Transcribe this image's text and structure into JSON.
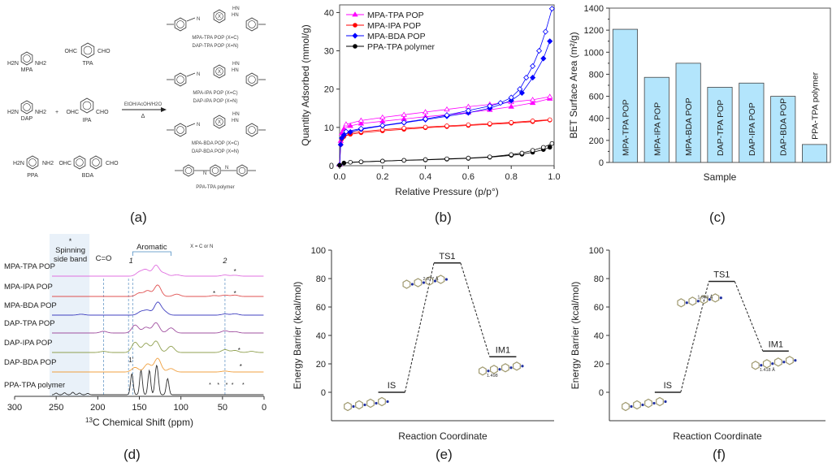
{
  "panels": {
    "a": {
      "label": "(a)"
    },
    "b": {
      "label": "(b)"
    },
    "c": {
      "label": "(c)"
    },
    "d": {
      "label": "(d)"
    },
    "e": {
      "label": "(e)"
    },
    "f": {
      "label": "(f)"
    }
  },
  "scheme": {
    "monomers": [
      {
        "name": "MPA",
        "left": "H2N",
        "right": "NH2"
      },
      {
        "name": "TPA",
        "left": "OHC",
        "right": "CHO"
      },
      {
        "name": "DAP",
        "left": "H2N",
        "right": "NH2"
      },
      {
        "name": "IPA",
        "left": "OHC",
        "right": "CHO"
      },
      {
        "name": "PPA",
        "left": "H2N",
        "right": "NH2"
      },
      {
        "name": "BDA",
        "left": "OHC",
        "right": "CHO"
      }
    ],
    "plus": "+",
    "conditions_top": "EtOH/AcOH/H2O",
    "conditions_bottom": "Δ",
    "products": [
      {
        "line1": "MPA-TPA POP (X=C)",
        "line2": "DAP-TPA POP (X=N)"
      },
      {
        "line1": "MPA-IPA POP (X=C)",
        "line2": "DAP-IPA POP (X=N)"
      },
      {
        "line1": "MPA-BDA POP (X=C)",
        "line2": "DAP-BDA POP (X=N)"
      },
      {
        "line1": "PPA-TPA polymer",
        "line2": ""
      }
    ],
    "atom_labels": {
      "N": "N",
      "X": "X",
      "HN": "HN",
      "H": "H"
    }
  },
  "chart_data": [
    {
      "id": "b",
      "type": "scatter",
      "title": "",
      "xlabel": "Relative Pressure (p/p°)",
      "ylabel": "Quantity Adsorbed (mmol/g)",
      "xlim": [
        0,
        1.0
      ],
      "ylim": [
        0,
        42
      ],
      "xticks": [
        "0.0",
        "0.2",
        "0.4",
        "0.6",
        "0.8",
        "1.0"
      ],
      "yticks": [
        "0",
        "10",
        "20",
        "30",
        "40"
      ],
      "legend_position": "top-left",
      "series": [
        {
          "name": "MPA-TPA POP",
          "color": "#ff00ff",
          "marker": "triangle",
          "adsorption": [
            [
              0.0,
              0.3
            ],
            [
              0.005,
              6.5
            ],
            [
              0.01,
              8.5
            ],
            [
              0.02,
              9.6
            ],
            [
              0.05,
              10.4
            ],
            [
              0.1,
              11.0
            ],
            [
              0.2,
              11.6
            ],
            [
              0.3,
              12.2
            ],
            [
              0.4,
              12.8
            ],
            [
              0.5,
              13.3
            ],
            [
              0.6,
              13.9
            ],
            [
              0.7,
              14.6
            ],
            [
              0.8,
              15.4
            ],
            [
              0.9,
              16.4
            ],
            [
              0.98,
              17.5
            ]
          ],
          "desorption": [
            [
              0.98,
              18.0
            ],
            [
              0.9,
              17.2
            ],
            [
              0.8,
              16.6
            ],
            [
              0.7,
              16.0
            ],
            [
              0.6,
              15.4
            ],
            [
              0.5,
              14.7
            ],
            [
              0.4,
              14.0
            ],
            [
              0.3,
              13.3
            ],
            [
              0.2,
              12.6
            ],
            [
              0.1,
              11.8
            ],
            [
              0.03,
              10.8
            ]
          ]
        },
        {
          "name": "MPA-IPA POP",
          "color": "#ff0000",
          "marker": "circle",
          "adsorption": [
            [
              0.0,
              0.2
            ],
            [
              0.005,
              5.5
            ],
            [
              0.01,
              7.0
            ],
            [
              0.02,
              7.6
            ],
            [
              0.05,
              8.2
            ],
            [
              0.1,
              8.6
            ],
            [
              0.2,
              9.1
            ],
            [
              0.3,
              9.5
            ],
            [
              0.4,
              9.9
            ],
            [
              0.5,
              10.2
            ],
            [
              0.6,
              10.5
            ],
            [
              0.7,
              10.8
            ],
            [
              0.8,
              11.1
            ],
            [
              0.9,
              11.5
            ],
            [
              0.98,
              11.9
            ]
          ],
          "desorption": [
            [
              0.98,
              12.0
            ],
            [
              0.9,
              11.7
            ],
            [
              0.8,
              11.3
            ],
            [
              0.7,
              11.0
            ],
            [
              0.6,
              10.7
            ],
            [
              0.5,
              10.4
            ],
            [
              0.4,
              10.1
            ],
            [
              0.3,
              9.8
            ],
            [
              0.2,
              9.4
            ],
            [
              0.1,
              8.9
            ],
            [
              0.03,
              8.4
            ]
          ]
        },
        {
          "name": "MPA-BDA POP",
          "color": "#0000ff",
          "marker": "diamond",
          "adsorption": [
            [
              0.0,
              0.2
            ],
            [
              0.005,
              5.5
            ],
            [
              0.01,
              7.2
            ],
            [
              0.02,
              8.0
            ],
            [
              0.05,
              8.8
            ],
            [
              0.1,
              9.5
            ],
            [
              0.2,
              10.4
            ],
            [
              0.3,
              11.2
            ],
            [
              0.4,
              12.0
            ],
            [
              0.5,
              12.9
            ],
            [
              0.6,
              13.8
            ],
            [
              0.7,
              15.0
            ],
            [
              0.8,
              17.0
            ],
            [
              0.85,
              19.0
            ],
            [
              0.9,
              23.0
            ],
            [
              0.95,
              28.0
            ],
            [
              0.98,
              32.5
            ]
          ],
          "desorption": [
            [
              0.99,
              41.0
            ],
            [
              0.96,
              35.0
            ],
            [
              0.93,
              30.0
            ],
            [
              0.9,
              26.0
            ],
            [
              0.87,
              23.0
            ],
            [
              0.84,
              20.0
            ],
            [
              0.8,
              17.8
            ],
            [
              0.75,
              16.4
            ],
            [
              0.7,
              15.6
            ],
            [
              0.6,
              14.4
            ],
            [
              0.5,
              13.2
            ],
            [
              0.4,
              12.2
            ],
            [
              0.3,
              11.3
            ],
            [
              0.2,
              10.5
            ],
            [
              0.1,
              9.7
            ],
            [
              0.03,
              8.9
            ]
          ]
        },
        {
          "name": "PPA-TPA polymer",
          "color": "#000000",
          "marker": "circle",
          "adsorption": [
            [
              0.0,
              0.1
            ],
            [
              0.02,
              0.7
            ],
            [
              0.1,
              1.0
            ],
            [
              0.2,
              1.2
            ],
            [
              0.3,
              1.4
            ],
            [
              0.4,
              1.5
            ],
            [
              0.5,
              1.7
            ],
            [
              0.6,
              1.9
            ],
            [
              0.7,
              2.2
            ],
            [
              0.8,
              2.7
            ],
            [
              0.85,
              3.0
            ],
            [
              0.9,
              3.5
            ],
            [
              0.95,
              4.2
            ],
            [
              0.98,
              4.8
            ]
          ],
          "desorption": [
            [
              0.99,
              5.8
            ],
            [
              0.95,
              4.8
            ],
            [
              0.9,
              4.0
            ],
            [
              0.85,
              3.3
            ],
            [
              0.8,
              2.9
            ],
            [
              0.7,
              2.3
            ],
            [
              0.6,
              2.0
            ],
            [
              0.5,
              1.8
            ],
            [
              0.4,
              1.6
            ],
            [
              0.3,
              1.4
            ],
            [
              0.2,
              1.2
            ],
            [
              0.1,
              1.0
            ],
            [
              0.05,
              0.9
            ]
          ]
        }
      ]
    },
    {
      "id": "c",
      "type": "bar",
      "title": "",
      "xlabel": "Sample",
      "ylabel": "BET Surface Area (m²/g)",
      "ylim": [
        0,
        1400
      ],
      "yticks": [
        "0",
        "200",
        "400",
        "600",
        "800",
        "1000",
        "1200",
        "1400"
      ],
      "bar_color": "#b3e5fc",
      "categories": [
        "MPA-TPA POP",
        "MPA-IPA POP",
        "MPA-BDA POP",
        "DAP-TPA POP",
        "DAP-IPA POP",
        "DAP-BDA POP",
        "PPA-TPA polymer"
      ],
      "values": [
        1208,
        772,
        900,
        682,
        720,
        600,
        163
      ]
    },
    {
      "id": "d",
      "type": "line",
      "title": "",
      "xlabel": "13C Chemical Shift (ppm)",
      "xlabel_sup": "13",
      "xlabel_main": "C Chemical Shift (ppm)",
      "xlim": [
        300,
        0
      ],
      "xticks": [
        "300",
        "250",
        "200",
        "150",
        "100",
        "50",
        "0"
      ],
      "shaded_region": [
        210,
        258
      ],
      "dashed_lines": [
        193,
        163,
        158,
        47
      ],
      "annotations": {
        "spinning": "Spinning side band",
        "star": "*",
        "co": "C=O",
        "aromatic": "Aromatic",
        "peak1": "1",
        "peak2": "2",
        "peak1p": "1'",
        "x_note": "X = C or N"
      },
      "series": [
        {
          "name": "MPA-TPA POP",
          "color": "#e070e0",
          "peaks": [
            [
              150,
              0.35
            ],
            [
              142,
              0.55
            ],
            [
              130,
              0.95
            ],
            [
              120,
              0.25
            ],
            [
              105,
              0.12
            ],
            [
              47,
              0.1
            ],
            [
              35,
              0.08
            ]
          ]
        },
        {
          "name": "MPA-IPA POP",
          "color": "#e05050",
          "peaks": [
            [
              150,
              0.3
            ],
            [
              140,
              0.5
            ],
            [
              128,
              1.0
            ],
            [
              105,
              0.2
            ],
            [
              60,
              0.08
            ],
            [
              47,
              0.12
            ],
            [
              35,
              0.12
            ]
          ]
        },
        {
          "name": "MPA-BDA POP",
          "color": "#4040c0",
          "peaks": [
            [
              148,
              0.3
            ],
            [
              140,
              0.4
            ],
            [
              128,
              1.1
            ],
            [
              120,
              0.3
            ],
            [
              47,
              0.1
            ],
            [
              35,
              0.12
            ],
            [
              220,
              0.08
            ]
          ]
        },
        {
          "name": "DAP-TPA POP",
          "color": "#a050a0",
          "peaks": [
            [
              155,
              0.7
            ],
            [
              142,
              0.5
            ],
            [
              130,
              0.9
            ],
            [
              112,
              0.45
            ],
            [
              193,
              0.15
            ],
            [
              47,
              0.2
            ],
            [
              35,
              0.12
            ]
          ]
        },
        {
          "name": "DAP-IPA POP",
          "color": "#90a050",
          "peaks": [
            [
              155,
              0.9
            ],
            [
              142,
              0.8
            ],
            [
              130,
              1.0
            ],
            [
              112,
              0.55
            ],
            [
              193,
              0.1
            ],
            [
              47,
              0.25
            ],
            [
              35,
              0.18
            ],
            [
              15,
              0.1
            ]
          ]
        },
        {
          "name": "DAP-BDA POP",
          "color": "#f0a040",
          "peaks": [
            [
              155,
              0.4
            ],
            [
              140,
              0.7
            ],
            [
              128,
              1.2
            ],
            [
              112,
              0.3
            ],
            [
              47,
              0.08
            ]
          ]
        },
        {
          "name": "PPA-TPA polymer",
          "color": "#303030",
          "peaks": [
            [
              159,
              1.3
            ],
            [
              148,
              1.5
            ],
            [
              138,
              1.5
            ],
            [
              130,
              1.2
            ],
            [
              128,
              1.0
            ],
            [
              116,
              1.0
            ],
            [
              250,
              0.1
            ],
            [
              240,
              0.12
            ],
            [
              230,
              0.15
            ],
            [
              222,
              0.1
            ],
            [
              212,
              0.08
            ]
          ]
        }
      ]
    },
    {
      "id": "e",
      "type": "line",
      "title": "",
      "xlabel": "Reaction Coordinate",
      "ylabel": "Energy Barrier (kcal/mol)",
      "ylim": [
        -20,
        100
      ],
      "yticks": [
        "0",
        "20",
        "40",
        "60",
        "80",
        "100"
      ],
      "states": [
        {
          "name": "IS",
          "energy": 0
        },
        {
          "name": "TS1",
          "energy": 91
        },
        {
          "name": "IM1",
          "energy": 25
        }
      ],
      "distance_labels": [
        "2.877 Å",
        "1.498"
      ]
    },
    {
      "id": "f",
      "type": "line",
      "title": "",
      "xlabel": "Reaction Coordinate",
      "ylabel": "Energy Barrier (kcal/mol)",
      "ylim": [
        -20,
        100
      ],
      "yticks": [
        "0",
        "20",
        "40",
        "60",
        "80",
        "100"
      ],
      "states": [
        {
          "name": "IS",
          "energy": 0
        },
        {
          "name": "TS1",
          "energy": 78
        },
        {
          "name": "IM1",
          "energy": 29
        }
      ],
      "distance_labels": [
        "1.963 Å",
        "1.418 Å"
      ]
    }
  ]
}
